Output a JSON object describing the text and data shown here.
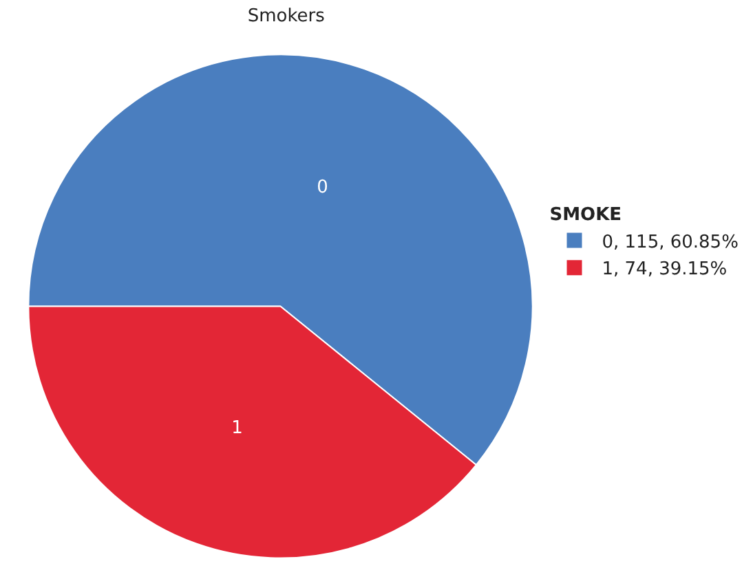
{
  "chart_data": {
    "type": "pie",
    "title": "Smokers",
    "legend_title": "SMOKE",
    "categories": [
      "0, 115, 60.85%",
      "1, 74, 39.15%"
    ],
    "values": [
      115,
      74
    ],
    "colors": [
      "#4a7ebf",
      "#e32636"
    ],
    "annotations": [
      "0",
      "1"
    ],
    "legend": "right"
  }
}
